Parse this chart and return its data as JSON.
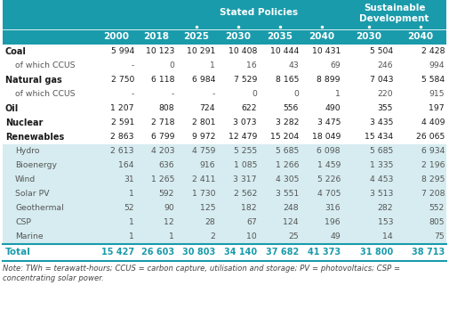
{
  "header_bg": "#1a9bab",
  "header_text_color": "#ffffff",
  "shade_bg": "#d6ecf0",
  "white_bg": "#ffffff",
  "total_text_color": "#1a9bab",
  "bold_row_color": "#1a1a1a",
  "normal_row_color": "#555555",
  "note_text_line1": "Note: TWh = terawatt-hours; CCUS = carbon capture, utilisation and storage; PV = photovoltaics; CSP =",
  "note_text_line2": "concentrating solar power.",
  "year_labels": [
    "2000",
    "2018",
    "2025",
    "2030",
    "2035",
    "2040",
    "2030",
    "2040"
  ],
  "rows": [
    {
      "label": "Coal",
      "bold": true,
      "indent": false,
      "values": [
        "5 994",
        "10 123",
        "10 291",
        "10 408",
        "10 444",
        "10 431",
        "5 504",
        "2 428"
      ],
      "shade": false
    },
    {
      "label": "of which CCUS",
      "bold": false,
      "indent": true,
      "values": [
        "-",
        "0",
        "1",
        "16",
        "43",
        "69",
        "246",
        "994"
      ],
      "shade": false
    },
    {
      "label": "Natural gas",
      "bold": true,
      "indent": false,
      "values": [
        "2 750",
        "6 118",
        "6 984",
        "7 529",
        "8 165",
        "8 899",
        "7 043",
        "5 584"
      ],
      "shade": false
    },
    {
      "label": "of which CCUS",
      "bold": false,
      "indent": true,
      "values": [
        "-",
        "-",
        "-",
        "0",
        "0",
        "1",
        "220",
        "915"
      ],
      "shade": false
    },
    {
      "label": "Oil",
      "bold": true,
      "indent": false,
      "values": [
        "1 207",
        "808",
        "724",
        "622",
        "556",
        "490",
        "355",
        "197"
      ],
      "shade": false
    },
    {
      "label": "Nuclear",
      "bold": true,
      "indent": false,
      "values": [
        "2 591",
        "2 718",
        "2 801",
        "3 073",
        "3 282",
        "3 475",
        "3 435",
        "4 409"
      ],
      "shade": false
    },
    {
      "label": "Renewables",
      "bold": true,
      "indent": false,
      "values": [
        "2 863",
        "6 799",
        "9 972",
        "12 479",
        "15 204",
        "18 049",
        "15 434",
        "26 065"
      ],
      "shade": false
    },
    {
      "label": "Hydro",
      "bold": false,
      "indent": true,
      "values": [
        "2 613",
        "4 203",
        "4 759",
        "5 255",
        "5 685",
        "6 098",
        "5 685",
        "6 934"
      ],
      "shade": true
    },
    {
      "label": "Bioenergy",
      "bold": false,
      "indent": true,
      "values": [
        "164",
        "636",
        "916",
        "1 085",
        "1 266",
        "1 459",
        "1 335",
        "2 196"
      ],
      "shade": true
    },
    {
      "label": "Wind",
      "bold": false,
      "indent": true,
      "values": [
        "31",
        "1 265",
        "2 411",
        "3 317",
        "4 305",
        "5 226",
        "4 453",
        "8 295"
      ],
      "shade": true
    },
    {
      "label": "Solar PV",
      "bold": false,
      "indent": true,
      "values": [
        "1",
        "592",
        "1 730",
        "2 562",
        "3 551",
        "4 705",
        "3 513",
        "7 208"
      ],
      "shade": true
    },
    {
      "label": "Geothermal",
      "bold": false,
      "indent": true,
      "values": [
        "52",
        "90",
        "125",
        "182",
        "248",
        "316",
        "282",
        "552"
      ],
      "shade": true
    },
    {
      "label": "CSP",
      "bold": false,
      "indent": true,
      "values": [
        "1",
        "12",
        "28",
        "67",
        "124",
        "196",
        "153",
        "805"
      ],
      "shade": true
    },
    {
      "label": "Marine",
      "bold": false,
      "indent": true,
      "values": [
        "1",
        "1",
        "2",
        "10",
        "25",
        "49",
        "14",
        "75"
      ],
      "shade": true
    }
  ],
  "total_label": "Total",
  "total_values": [
    "15 427",
    "26 603",
    "30 803",
    "34 140",
    "37 682",
    "41 373",
    "31 800",
    "38 713"
  ]
}
